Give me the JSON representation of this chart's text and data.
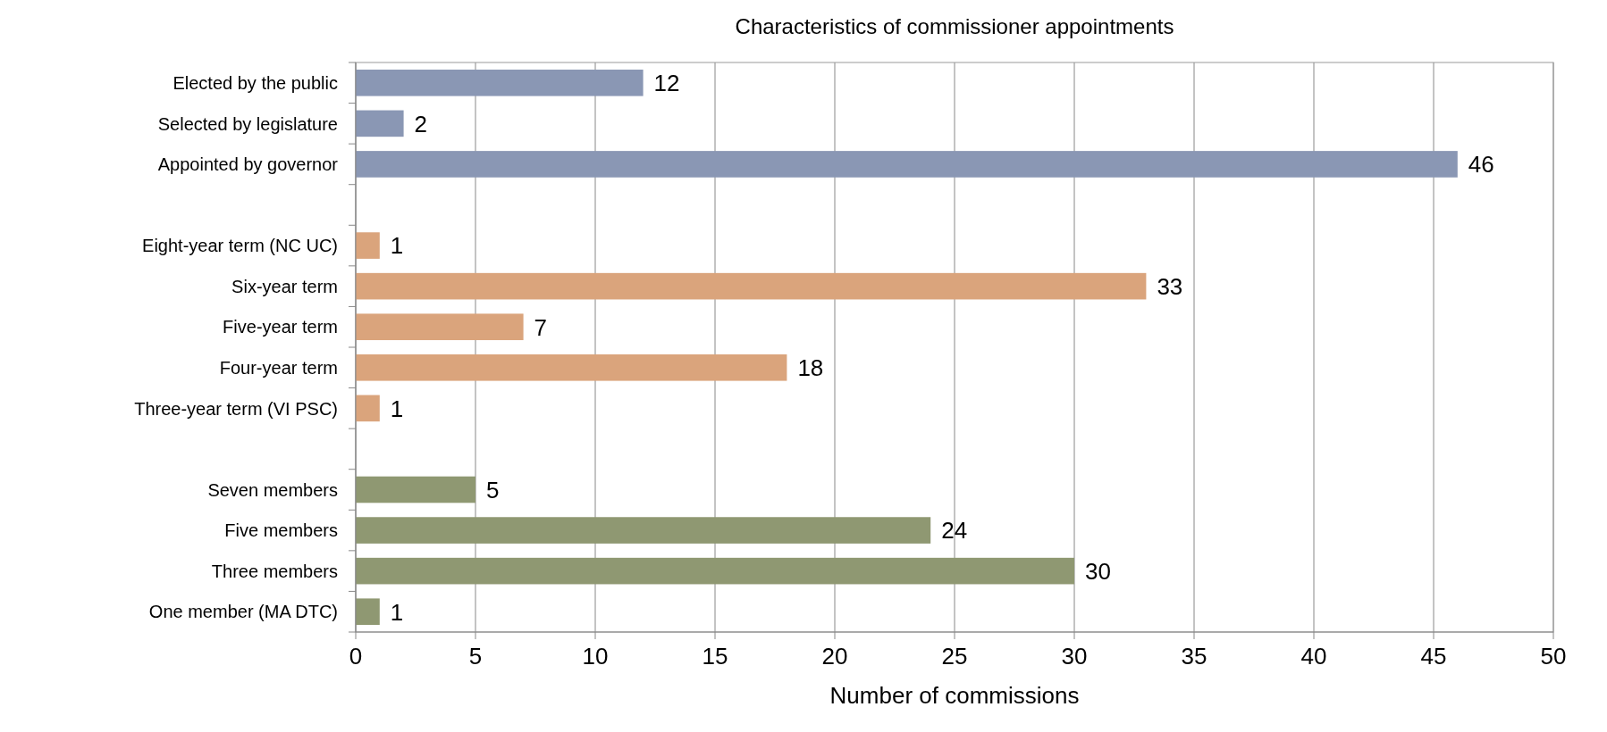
{
  "chart_data": {
    "type": "bar",
    "orientation": "horizontal",
    "title": "Characteristics of commissioner appointments",
    "xlabel": "Number of commissions",
    "categories": [
      "Elected by the public",
      "Selected by legislature",
      "Appointed by governor",
      null,
      "Eight-year term (NC UC)",
      "Six-year term",
      "Five-year term",
      "Four-year term",
      "Three-year term (VI PSC)",
      null,
      "Seven members",
      "Five members",
      "Three members",
      "One member (MA DTC)"
    ],
    "values": [
      12,
      2,
      46,
      null,
      1,
      33,
      7,
      18,
      1,
      null,
      5,
      24,
      30,
      1
    ],
    "colors": [
      "#8a97b4",
      "#8a97b4",
      "#8a97b4",
      null,
      "#daa47c",
      "#daa47c",
      "#daa47c",
      "#daa47c",
      "#daa47c",
      null,
      "#8f9872",
      "#8f9872",
      "#8f9872",
      "#8f9872"
    ],
    "xlim": [
      0,
      50
    ],
    "xticks": [
      0,
      5,
      10,
      15,
      20,
      25,
      30,
      35,
      40,
      45,
      50
    ],
    "grid": "x",
    "data_labels": true
  }
}
